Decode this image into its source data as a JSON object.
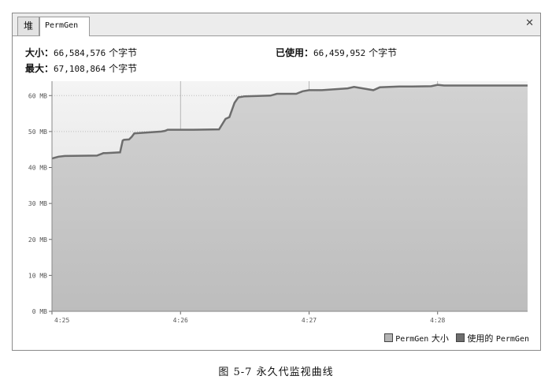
{
  "tabs": [
    {
      "label": "堆"
    },
    {
      "label": "PermGen"
    }
  ],
  "close_icon": "close-icon",
  "info": {
    "size_label": "大小：",
    "size_value": "66,584,576",
    "size_unit": "个字节",
    "max_label": "最大：",
    "max_value": "67,108,864",
    "max_unit": "个字节",
    "used_label": "已使用：",
    "used_value": "66,459,952",
    "used_unit": "个字节"
  },
  "legend": {
    "size_name": "PermGen",
    "size_suffix": "大小",
    "used_prefix": "使用的",
    "used_name": "PermGen"
  },
  "caption": "图    5-7    永久代监视曲线",
  "colors": {
    "plot_bg_top": "#f2f2f2",
    "plot_bg_bottom": "#c9c9c9",
    "area_fill": "#c4c4c4",
    "line": "#6d6d6d",
    "grid": "#c8c8c8"
  },
  "chart_data": {
    "type": "area",
    "ylim": [
      0,
      64
    ],
    "ytick_labels": [
      "0 MB",
      "10 MB",
      "20 MB",
      "30 MB",
      "40 MB",
      "50 MB",
      "60 MB"
    ],
    "ytick_values": [
      0,
      10,
      20,
      30,
      40,
      50,
      60
    ],
    "xtick_labels": [
      "4:25",
      "4:26",
      "4:27",
      "4:28"
    ],
    "xtick_values": [
      0,
      1,
      2,
      3
    ],
    "xlim": [
      0,
      3.7
    ],
    "series": [
      {
        "name": "使用的 PermGen",
        "x": [
          0,
          0.05,
          0.1,
          0.35,
          0.4,
          0.42,
          0.53,
          0.55,
          0.56,
          0.6,
          0.62,
          0.64,
          0.85,
          0.88,
          0.9,
          1.0,
          1.1,
          1.3,
          1.35,
          1.38,
          1.42,
          1.45,
          1.5,
          1.7,
          1.75,
          1.9,
          1.95,
          2.0,
          2.1,
          2.3,
          2.35,
          2.5,
          2.55,
          2.7,
          2.8,
          2.95,
          3.0,
          3.05,
          3.2,
          3.7
        ],
        "y": [
          42.5,
          43,
          43.2,
          43.3,
          44,
          44,
          44.2,
          47.5,
          47.7,
          47.8,
          48.5,
          49.5,
          50,
          50.2,
          50.5,
          50.5,
          50.5,
          50.6,
          53.5,
          54,
          58,
          59.5,
          59.8,
          60,
          60.5,
          60.5,
          61.2,
          61.5,
          61.5,
          62,
          62.4,
          61.5,
          62.3,
          62.5,
          62.5,
          62.6,
          63,
          62.8,
          62.8,
          62.8
        ]
      }
    ]
  }
}
